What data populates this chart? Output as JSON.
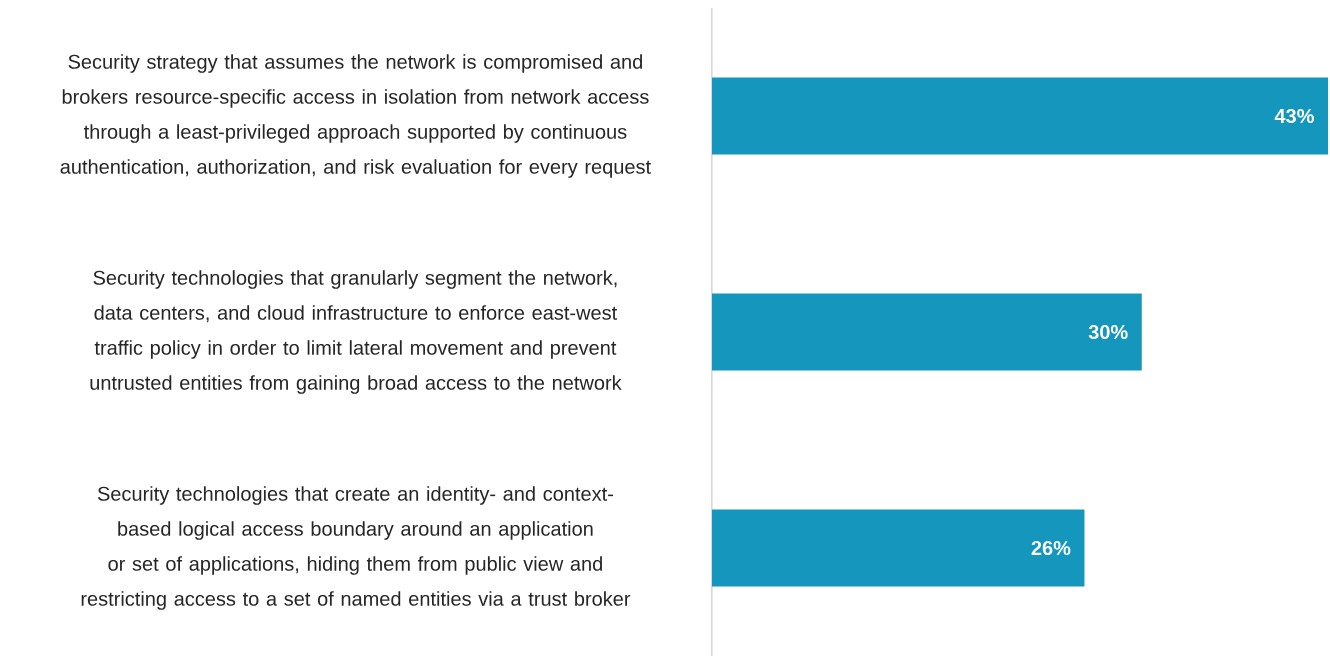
{
  "chart_data": {
    "type": "bar",
    "orientation": "horizontal",
    "categories": [
      "Security strategy that assumes the network is compromised and brokers resource-specific access in isolation from network access through a least-privileged approach supported by continuous authentication, authorization, and risk evaluation for every request",
      "Security technologies that granularly segment the network, data centers, and cloud infrastructure to enforce east-west traffic policy in order to limit lateral movement and prevent untrusted entities from gaining broad access to the network",
      "Security technologies that create an identity- and context-based logical access boundary around an application or set of applications, hiding them from public view and restricting access to a set of named entities via a trust broker"
    ],
    "values": [
      43,
      30,
      26
    ],
    "value_labels": [
      "43%",
      "30%",
      "26%"
    ],
    "color": "#1496bd"
  }
}
